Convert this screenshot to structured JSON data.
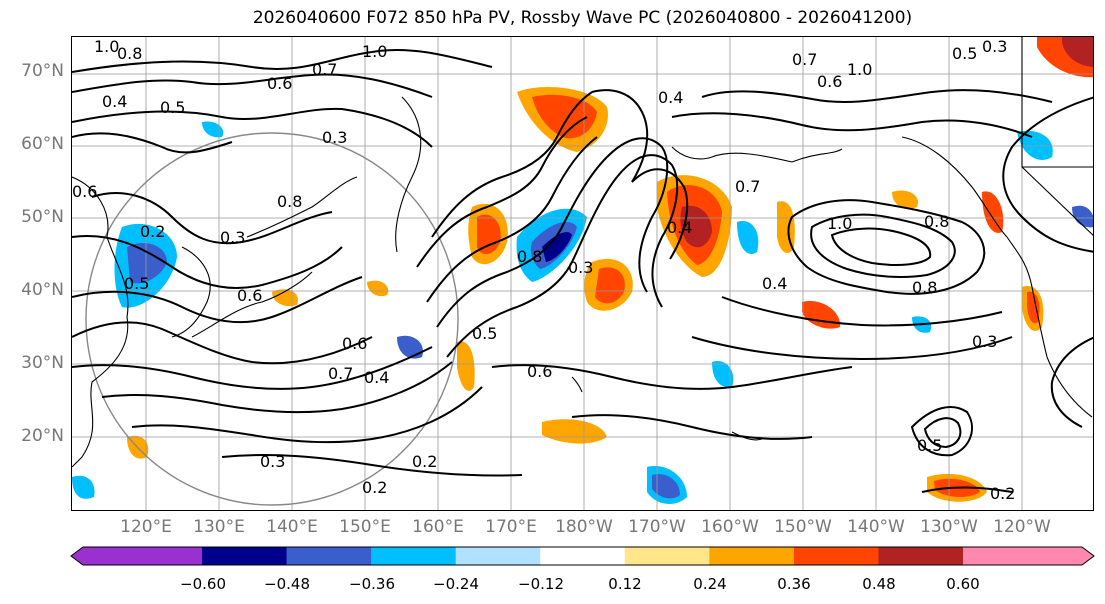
{
  "title": "2026040600 F072 850 hPa PV, Rossby Wave PC (2026040800 - 2026041200)",
  "lat_labels": [
    "70°N",
    "60°N",
    "50°N",
    "40°N",
    "30°N",
    "20°N"
  ],
  "lon_labels": [
    "120°E",
    "130°E",
    "140°E",
    "150°E",
    "160°E",
    "170°E",
    "180°W",
    "170°W",
    "160°W",
    "150°W",
    "140°W",
    "130°W",
    "120°W"
  ],
  "colorbar": {
    "ticks": [
      "−0.60",
      "−0.48",
      "−0.36",
      "−0.24",
      "−0.12",
      "0.12",
      "0.24",
      "0.36",
      "0.48",
      "0.60"
    ],
    "colors": [
      "#9b30d0",
      "#00008b",
      "#3a5fcd",
      "#00bfff",
      "#b0e2ff",
      "#ffffff",
      "#ffe68a",
      "#ffa500",
      "#ff4500",
      "#b22222",
      "#ff88b0"
    ]
  },
  "contour_labels": [
    "1.0",
    "0.8",
    "0.7",
    "0.6",
    "0.5",
    "0.3",
    "0.4",
    "0.6",
    "0.8",
    "1.0",
    "0.2",
    "0.3",
    "0.5",
    "0.6",
    "0.7",
    "0.4",
    "0.6",
    "0.6",
    "0.3",
    "0.5",
    "0.8",
    "0.4",
    "1.0",
    "0.7",
    "0.8",
    "0.4",
    "0.3",
    "0.5",
    "0.2",
    "0.2",
    "0.3",
    "0.2",
    "0.6",
    "0.5",
    "0.4",
    "0.3",
    "0.8",
    "0.7",
    "1.0"
  ],
  "colors": {
    "positive": "#ff4500",
    "negative": "#00bfff",
    "grid": "#8a8a8a",
    "contour": "#000000"
  }
}
